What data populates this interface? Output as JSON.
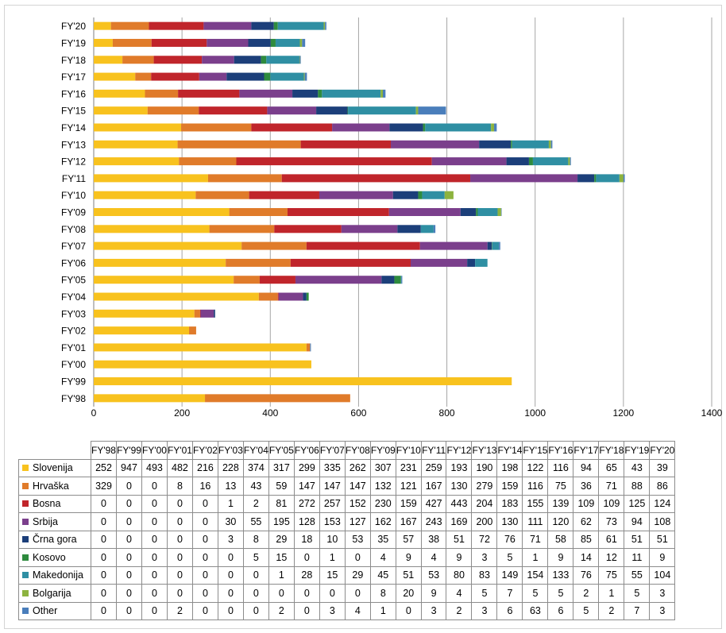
{
  "chart_data": {
    "type": "bar",
    "orientation": "horizontal",
    "stacked": true,
    "title": "",
    "xlabel": "",
    "ylabel": "",
    "xlim": [
      0,
      1400
    ],
    "xticks": [
      0,
      200,
      400,
      600,
      800,
      1000,
      1200,
      1400
    ],
    "grid": true,
    "legend": "table-bottom",
    "categories": [
      "FY'98",
      "FY'99",
      "FY'00",
      "FY'01",
      "FY'02",
      "FY'03",
      "FY'04",
      "FY'05",
      "FY'06",
      "FY'07",
      "FY'08",
      "FY'09",
      "FY'10",
      "FY'11",
      "FY'12",
      "FY'13",
      "FY'14",
      "FY'15",
      "FY'16",
      "FY'17",
      "FY'18",
      "FY'19",
      "FY'20"
    ],
    "series": [
      {
        "name": "Slovenija",
        "color": "#F8C21E",
        "values": [
          252,
          947,
          493,
          482,
          216,
          228,
          374,
          317,
          299,
          335,
          262,
          307,
          231,
          259,
          193,
          190,
          198,
          122,
          116,
          94,
          65,
          43,
          39
        ]
      },
      {
        "name": "Hrvaška",
        "color": "#E07B2A",
        "values": [
          329,
          0,
          0,
          8,
          16,
          13,
          43,
          59,
          147,
          147,
          147,
          132,
          121,
          167,
          130,
          279,
          159,
          116,
          75,
          36,
          71,
          88,
          86
        ]
      },
      {
        "name": "Bosna",
        "color": "#C0252B",
        "values": [
          0,
          0,
          0,
          0,
          0,
          1,
          2,
          81,
          272,
          257,
          152,
          230,
          159,
          427,
          443,
          204,
          183,
          155,
          139,
          109,
          109,
          125,
          124
        ]
      },
      {
        "name": "Srbija",
        "color": "#7B3F8C",
        "values": [
          0,
          0,
          0,
          0,
          0,
          30,
          55,
          195,
          128,
          153,
          127,
          162,
          167,
          243,
          169,
          200,
          130,
          111,
          120,
          62,
          73,
          94,
          108
        ]
      },
      {
        "name": "Črna gora",
        "color": "#1C3F7A",
        "values": [
          0,
          0,
          0,
          0,
          0,
          3,
          8,
          29,
          18,
          10,
          53,
          35,
          57,
          38,
          51,
          72,
          76,
          71,
          58,
          85,
          61,
          51,
          51
        ]
      },
      {
        "name": "Kosovo",
        "color": "#2E8B3E",
        "values": [
          0,
          0,
          0,
          0,
          0,
          0,
          5,
          15,
          0,
          1,
          0,
          4,
          9,
          4,
          9,
          3,
          5,
          1,
          9,
          14,
          12,
          11,
          9
        ]
      },
      {
        "name": "Makedonija",
        "color": "#2F8FA3",
        "values": [
          0,
          0,
          0,
          0,
          0,
          0,
          0,
          1,
          28,
          15,
          29,
          45,
          51,
          53,
          80,
          83,
          149,
          154,
          133,
          76,
          75,
          55,
          104
        ]
      },
      {
        "name": "Bolgarija",
        "color": "#8DB33F",
        "values": [
          0,
          0,
          0,
          0,
          0,
          0,
          0,
          0,
          0,
          0,
          0,
          8,
          20,
          9,
          4,
          5,
          7,
          5,
          5,
          2,
          1,
          5,
          3
        ]
      },
      {
        "name": "Other",
        "color": "#4A7EBB",
        "values": [
          0,
          0,
          0,
          2,
          0,
          0,
          0,
          2,
          0,
          3,
          4,
          1,
          0,
          3,
          2,
          3,
          6,
          63,
          6,
          5,
          2,
          7,
          3
        ]
      }
    ]
  }
}
